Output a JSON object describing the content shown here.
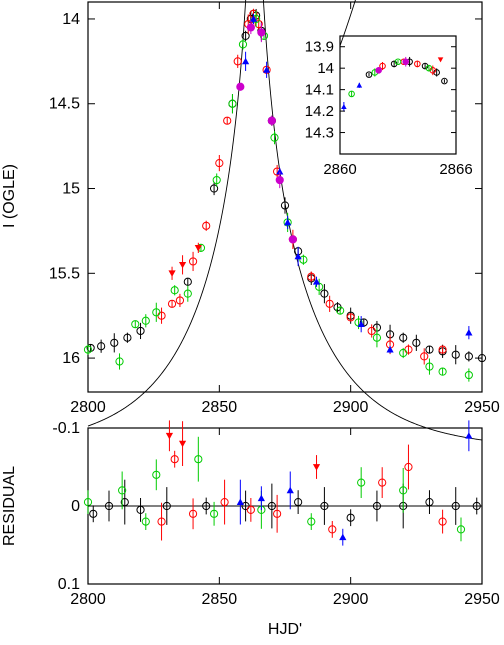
{
  "chart_data": [
    {
      "id": "light-curve",
      "type": "scatter",
      "title": "",
      "xlabel": "",
      "ylabel": "I (OGLE)",
      "xlim": [
        2800,
        2950
      ],
      "ylim": [
        16.2,
        13.9
      ],
      "y_inverted": true,
      "xticks": [
        "2800",
        "2850",
        "2900",
        "2950"
      ],
      "yticks": [
        "14",
        "14.5",
        "15",
        "15.5",
        "16"
      ],
      "xtick_values": [
        2800,
        2850,
        2900,
        2950
      ],
      "ytick_values": [
        14,
        14.5,
        15,
        15.5,
        16
      ],
      "model_curve": {
        "t0": 2863.4,
        "u0": 0.04,
        "tE": 44,
        "baseline": 16.55
      },
      "series": [
        {
          "color": "#000000",
          "marker": "open-circle",
          "points": [
            [
              2801,
              15.94
            ],
            [
              2805,
              15.93
            ],
            [
              2810,
              15.91
            ],
            [
              2815,
              15.88
            ],
            [
              2820,
              15.84
            ],
            [
              2838,
              15.55
            ],
            [
              2848,
              15.0
            ],
            [
              2855,
              14.5
            ],
            [
              2860,
              14.1
            ],
            [
              2862,
              14.0
            ],
            [
              2863,
              13.97
            ],
            [
              2864,
              13.98
            ],
            [
              2866,
              14.07
            ],
            [
              2870,
              14.6
            ],
            [
              2875,
              15.1
            ],
            [
              2880,
              15.37
            ],
            [
              2885,
              15.53
            ],
            [
              2890,
              15.62
            ],
            [
              2895,
              15.7
            ],
            [
              2900,
              15.75
            ],
            [
              2905,
              15.79
            ],
            [
              2910,
              15.82
            ],
            [
              2915,
              15.86
            ],
            [
              2920,
              15.88
            ],
            [
              2925,
              15.91
            ],
            [
              2930,
              15.95
            ],
            [
              2935,
              15.96
            ],
            [
              2940,
              15.98
            ],
            [
              2945,
              15.99
            ],
            [
              2950,
              16.0
            ]
          ]
        },
        {
          "color": "#ff0000",
          "marker": "open-circle",
          "points": [
            [
              2828,
              15.75
            ],
            [
              2832,
              15.68
            ],
            [
              2835,
              15.66
            ],
            [
              2840,
              15.43
            ],
            [
              2845,
              15.22
            ],
            [
              2850,
              14.85
            ],
            [
              2853,
              14.6
            ],
            [
              2857,
              14.25
            ],
            [
              2861,
              14.03
            ],
            [
              2863,
              13.97
            ],
            [
              2865,
              14.03
            ],
            [
              2868,
              14.3
            ],
            [
              2872,
              14.9
            ],
            [
              2878,
              15.3
            ],
            [
              2885,
              15.52
            ],
            [
              2892,
              15.68
            ],
            [
              2900,
              15.76
            ],
            [
              2908,
              15.84
            ],
            [
              2915,
              15.92
            ],
            [
              2922,
              15.95
            ],
            [
              2928,
              15.99
            ],
            [
              2935,
              15.95
            ]
          ]
        },
        {
          "color": "#00cc00",
          "marker": "open-circle",
          "points": [
            [
              2800,
              15.95
            ],
            [
              2812,
              16.02
            ],
            [
              2818,
              15.8
            ],
            [
              2822,
              15.78
            ],
            [
              2826,
              15.73
            ],
            [
              2833,
              15.6
            ],
            [
              2838,
              15.62
            ],
            [
              2843,
              15.35
            ],
            [
              2849,
              14.95
            ],
            [
              2855,
              14.5
            ],
            [
              2859,
              14.15
            ],
            [
              2864,
              14.0
            ],
            [
              2867,
              14.1
            ],
            [
              2871,
              14.7
            ],
            [
              2876,
              15.2
            ],
            [
              2882,
              15.42
            ],
            [
              2888,
              15.58
            ],
            [
              2896,
              15.72
            ],
            [
              2903,
              15.79
            ],
            [
              2910,
              15.88
            ],
            [
              2920,
              15.97
            ],
            [
              2930,
              16.05
            ],
            [
              2935,
              16.08
            ],
            [
              2945,
              16.1
            ]
          ]
        },
        {
          "color": "#0000ff",
          "marker": "filled-triangle",
          "points": [
            [
              2860,
              14.25
            ],
            [
              2863,
              14.0
            ],
            [
              2868,
              14.3
            ],
            [
              2873,
              14.9
            ],
            [
              2876,
              15.2
            ],
            [
              2880,
              15.4
            ],
            [
              2887,
              15.55
            ],
            [
              2904,
              15.8
            ],
            [
              2915,
              15.95
            ],
            [
              2945,
              15.85
            ]
          ]
        },
        {
          "color": "#ff0000",
          "marker": "filled-triangle-down",
          "points": [
            [
              2832,
              15.5
            ],
            [
              2836,
              15.45
            ],
            [
              2842,
              15.35
            ]
          ]
        },
        {
          "color": "#cc00cc",
          "marker": "filled-circle",
          "points": [
            [
              2858,
              14.4
            ],
            [
              2862,
              14.05
            ],
            [
              2866,
              14.08
            ],
            [
              2870,
              14.6
            ],
            [
              2873,
              14.95
            ],
            [
              2878,
              15.3
            ]
          ]
        }
      ]
    },
    {
      "id": "inset",
      "type": "scatter",
      "title": "",
      "xlim": [
        2860,
        2866
      ],
      "ylim": [
        14.4,
        13.85
      ],
      "y_inverted": true,
      "xticks": [
        "2860",
        "2866"
      ],
      "yticks": [
        "13.9",
        "14",
        "14.1",
        "14.2",
        "14.3"
      ],
      "xtick_values": [
        2860,
        2866
      ],
      "ytick_values": [
        13.9,
        14.0,
        14.1,
        14.2,
        14.3
      ],
      "series": [
        {
          "color": "#000000",
          "marker": "open-circle",
          "points": [
            [
              2861.5,
              14.03
            ],
            [
              2862.8,
              13.98
            ],
            [
              2863.6,
              13.97
            ],
            [
              2864.4,
              13.99
            ],
            [
              2865.0,
              14.02
            ],
            [
              2865.4,
              14.06
            ]
          ]
        },
        {
          "color": "#ff0000",
          "marker": "open-circle",
          "points": [
            [
              2862.2,
              13.99
            ],
            [
              2863.3,
              13.97
            ],
            [
              2864.0,
              13.98
            ],
            [
              2864.8,
              14.01
            ]
          ]
        },
        {
          "color": "#00cc00",
          "marker": "open-circle",
          "points": [
            [
              2860.6,
              14.12
            ],
            [
              2861.8,
              14.02
            ],
            [
              2863.0,
              13.97
            ],
            [
              2864.6,
              14.0
            ]
          ]
        },
        {
          "color": "#0000ff",
          "marker": "filled-triangle",
          "points": [
            [
              2860.2,
              14.18
            ],
            [
              2861.0,
              14.08
            ]
          ]
        },
        {
          "color": "#cc00cc",
          "marker": "filled-circle",
          "points": [
            [
              2862.0,
              14.01
            ],
            [
              2863.4,
              13.97
            ]
          ]
        },
        {
          "color": "#ff0000",
          "marker": "filled-triangle-down",
          "points": [
            [
              2865.2,
              13.96
            ]
          ]
        }
      ]
    },
    {
      "id": "residuals",
      "type": "scatter",
      "title": "",
      "xlabel": "HJD'",
      "ylabel": "RESIDUAL",
      "xlim": [
        2800,
        2950
      ],
      "ylim": [
        0.1,
        -0.1
      ],
      "y_inverted": true,
      "xticks": [
        "2800",
        "2850",
        "2900",
        "2950"
      ],
      "yticks": [
        "-0.1",
        "0",
        "0.1"
      ],
      "xtick_values": [
        2800,
        2850,
        2900,
        2950
      ],
      "ytick_values": [
        -0.1,
        0,
        0.1
      ],
      "series": [
        {
          "color": "#000000",
          "marker": "open-circle",
          "points": [
            [
              2802,
              0.01
            ],
            [
              2808,
              0.0
            ],
            [
              2814,
              -0.005
            ],
            [
              2820,
              0.005
            ],
            [
              2830,
              0.0
            ],
            [
              2845,
              0.0
            ],
            [
              2860,
              0.0
            ],
            [
              2870,
              0.0
            ],
            [
              2880,
              -0.005
            ],
            [
              2890,
              0.0
            ],
            [
              2900,
              0.015
            ],
            [
              2910,
              0.0
            ],
            [
              2920,
              0.0
            ],
            [
              2930,
              -0.005
            ],
            [
              2940,
              0.0
            ],
            [
              2948,
              0.0
            ]
          ]
        },
        {
          "color": "#ff0000",
          "marker": "open-circle",
          "points": [
            [
              2828,
              0.02
            ],
            [
              2833,
              -0.06
            ],
            [
              2840,
              0.01
            ],
            [
              2852,
              -0.005
            ],
            [
              2862,
              0.005
            ],
            [
              2872,
              0.01
            ],
            [
              2893,
              0.03
            ],
            [
              2912,
              -0.03
            ],
            [
              2922,
              -0.05
            ],
            [
              2935,
              0.02
            ]
          ]
        },
        {
          "color": "#00cc00",
          "marker": "open-circle",
          "points": [
            [
              2800,
              -0.005
            ],
            [
              2813,
              -0.02
            ],
            [
              2822,
              0.02
            ],
            [
              2826,
              -0.04
            ],
            [
              2842,
              -0.06
            ],
            [
              2848,
              0.01
            ],
            [
              2866,
              0.005
            ],
            [
              2885,
              0.02
            ],
            [
              2904,
              -0.03
            ],
            [
              2920,
              -0.02
            ],
            [
              2942,
              0.03
            ]
          ]
        },
        {
          "color": "#0000ff",
          "marker": "filled-triangle",
          "points": [
            [
              2858,
              -0.005
            ],
            [
              2866,
              -0.01
            ],
            [
              2877,
              -0.02
            ],
            [
              2897,
              0.04
            ],
            [
              2945,
              -0.09
            ]
          ]
        },
        {
          "color": "#ff0000",
          "marker": "filled-triangle-down",
          "points": [
            [
              2831,
              -0.09
            ],
            [
              2836,
              -0.08
            ],
            [
              2887,
              -0.05
            ]
          ]
        }
      ]
    }
  ]
}
